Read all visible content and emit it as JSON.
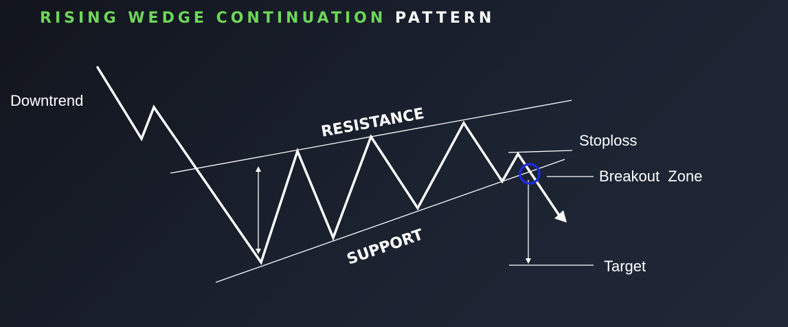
{
  "title": {
    "part1": "RISING WEDGE CONTINUATION",
    "part2": "PATTERN"
  },
  "labels": {
    "downtrend": "Downtrend",
    "resistance": "RESISTANCE",
    "support": "SUPPORT",
    "stoploss": "Stoploss",
    "breakout_zone": "Breakout  Zone",
    "target": "Target"
  },
  "colors": {
    "background": "#1b2230",
    "title_accent": "#6fd65a",
    "lines": "#ffffff",
    "breakout_marker": "#1e2ad8"
  }
}
